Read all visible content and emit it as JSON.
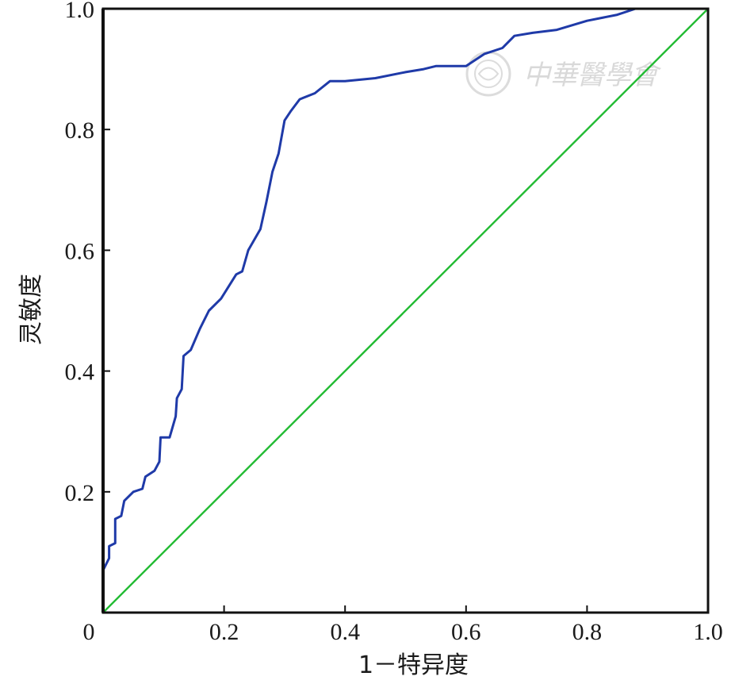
{
  "chart_data": {
    "type": "line",
    "title": "",
    "xlabel": "1－特异度",
    "ylabel": "灵敏度",
    "xlim": [
      0,
      1
    ],
    "ylim": [
      0,
      1
    ],
    "x_ticks": [
      "0",
      "0.2",
      "0.4",
      "0.6",
      "0.8",
      "1.0"
    ],
    "y_ticks": [
      "0.2",
      "0.4",
      "0.6",
      "0.8",
      "1.0"
    ],
    "grid": false,
    "series": [
      {
        "color": "#1f3aa8",
        "points": [
          [
            0,
            0
          ],
          [
            0,
            0.07
          ],
          [
            0.01,
            0.09
          ],
          [
            0.01,
            0.11
          ],
          [
            0.02,
            0.115
          ],
          [
            0.02,
            0.155
          ],
          [
            0.03,
            0.16
          ],
          [
            0.035,
            0.185
          ],
          [
            0.05,
            0.2
          ],
          [
            0.065,
            0.205
          ],
          [
            0.07,
            0.225
          ],
          [
            0.085,
            0.235
          ],
          [
            0.093,
            0.25
          ],
          [
            0.095,
            0.29
          ],
          [
            0.11,
            0.29
          ],
          [
            0.12,
            0.325
          ],
          [
            0.122,
            0.355
          ],
          [
            0.13,
            0.37
          ],
          [
            0.133,
            0.425
          ],
          [
            0.145,
            0.435
          ],
          [
            0.16,
            0.47
          ],
          [
            0.175,
            0.5
          ],
          [
            0.195,
            0.52
          ],
          [
            0.22,
            0.56
          ],
          [
            0.23,
            0.565
          ],
          [
            0.24,
            0.6
          ],
          [
            0.26,
            0.635
          ],
          [
            0.27,
            0.68
          ],
          [
            0.28,
            0.73
          ],
          [
            0.29,
            0.76
          ],
          [
            0.3,
            0.815
          ],
          [
            0.31,
            0.83
          ],
          [
            0.325,
            0.85
          ],
          [
            0.35,
            0.86
          ],
          [
            0.375,
            0.88
          ],
          [
            0.4,
            0.88
          ],
          [
            0.45,
            0.885
          ],
          [
            0.5,
            0.895
          ],
          [
            0.53,
            0.9
          ],
          [
            0.55,
            0.905
          ],
          [
            0.6,
            0.905
          ],
          [
            0.63,
            0.925
          ],
          [
            0.66,
            0.935
          ],
          [
            0.68,
            0.955
          ],
          [
            0.71,
            0.96
          ],
          [
            0.75,
            0.965
          ],
          [
            0.8,
            0.98
          ],
          [
            0.85,
            0.99
          ],
          [
            0.88,
            1.0
          ],
          [
            0.9,
            1.0
          ],
          [
            1.0,
            1.0
          ]
        ]
      },
      {
        "color": "#22bb33",
        "points": [
          [
            0,
            0
          ],
          [
            1,
            1
          ]
        ]
      }
    ]
  },
  "watermark": {
    "text": "中華醫學會",
    "color": "#d9d9d9"
  }
}
